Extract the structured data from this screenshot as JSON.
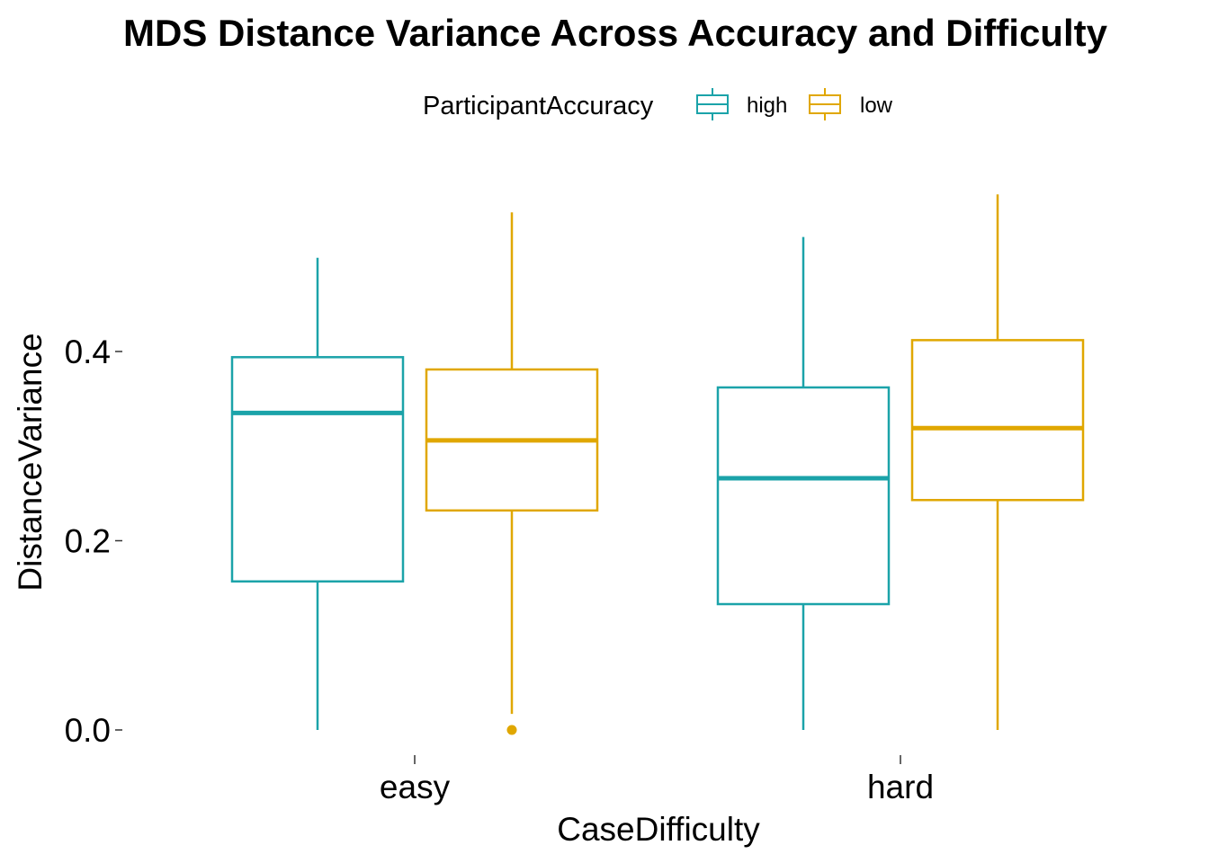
{
  "chart_data": {
    "type": "boxplot",
    "title": "MDS Distance Variance Across Accuracy and Difficulty",
    "xlabel": "CaseDifficulty",
    "ylabel": "DistanceVariance",
    "categories": [
      "easy",
      "hard"
    ],
    "ylim": [
      -0.01,
      0.57
    ],
    "yticks": [
      0.0,
      0.2,
      0.4
    ],
    "ytick_labels": [
      "0.0",
      "0.2",
      "0.4"
    ],
    "grid": false,
    "legend": {
      "title": "ParticipantAccuracy",
      "position": "top"
    },
    "series": [
      {
        "name": "high",
        "color": "#1BA3A9",
        "boxes": [
          {
            "category": "easy",
            "min": 0.0,
            "q1": 0.157,
            "median": 0.335,
            "q3": 0.394,
            "max": 0.499,
            "outliers": []
          },
          {
            "category": "hard",
            "min": 0.0,
            "q1": 0.133,
            "median": 0.266,
            "q3": 0.362,
            "max": 0.521,
            "outliers": []
          }
        ]
      },
      {
        "name": "low",
        "color": "#E0A700",
        "boxes": [
          {
            "category": "easy",
            "min": 0.017,
            "q1": 0.232,
            "median": 0.306,
            "q3": 0.381,
            "max": 0.547,
            "outliers": [
              0.0
            ]
          },
          {
            "category": "hard",
            "min": 0.0,
            "q1": 0.243,
            "median": 0.319,
            "q3": 0.412,
            "max": 0.566,
            "outliers": []
          }
        ]
      }
    ]
  }
}
